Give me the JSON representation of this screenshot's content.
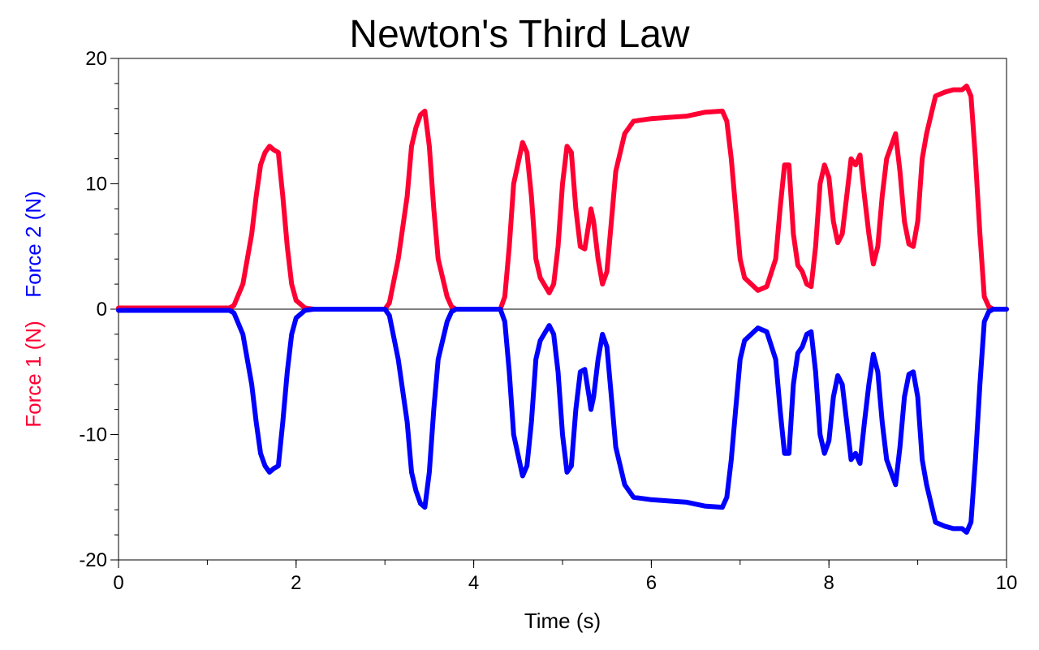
{
  "chart_data": {
    "type": "line",
    "title": "Newton's Third Law",
    "xlabel": "Time (s)",
    "ylabels": [
      {
        "text": "Force 1 (N)",
        "color": "#ff0033"
      },
      {
        "text": "Force 2 (N)",
        "color": "#0000ff"
      }
    ],
    "xlim": [
      0,
      10
    ],
    "ylim": [
      -20,
      20
    ],
    "xticks": [
      0,
      2,
      4,
      6,
      8,
      10
    ],
    "yticks": [
      -20,
      -10,
      0,
      10,
      20
    ],
    "grid": false,
    "x": [
      0,
      1.25,
      1.3,
      1.4,
      1.5,
      1.55,
      1.6,
      1.65,
      1.7,
      1.75,
      1.8,
      1.85,
      1.9,
      1.95,
      2.0,
      2.1,
      2.2,
      3.0,
      3.05,
      3.15,
      3.25,
      3.3,
      3.35,
      3.4,
      3.45,
      3.5,
      3.55,
      3.6,
      3.7,
      3.75,
      3.8,
      4.3,
      4.35,
      4.4,
      4.45,
      4.55,
      4.6,
      4.65,
      4.7,
      4.75,
      4.85,
      4.9,
      4.95,
      5.0,
      5.05,
      5.1,
      5.15,
      5.2,
      5.25,
      5.3,
      5.32,
      5.35,
      5.4,
      5.45,
      5.5,
      5.55,
      5.6,
      5.7,
      5.8,
      6.0,
      6.2,
      6.4,
      6.6,
      6.8,
      6.85,
      6.9,
      6.95,
      7.0,
      7.05,
      7.2,
      7.3,
      7.4,
      7.45,
      7.5,
      7.55,
      7.6,
      7.65,
      7.7,
      7.75,
      7.8,
      7.85,
      7.9,
      7.95,
      8.0,
      8.05,
      8.1,
      8.15,
      8.2,
      8.25,
      8.3,
      8.35,
      8.4,
      8.45,
      8.5,
      8.55,
      8.6,
      8.65,
      8.75,
      8.8,
      8.85,
      8.9,
      8.95,
      9.0,
      9.05,
      9.1,
      9.2,
      9.3,
      9.4,
      9.5,
      9.55,
      9.6,
      9.65,
      9.7,
      9.75,
      9.8,
      9.85,
      10
    ],
    "series": [
      {
        "name": "Force 1 (N)",
        "color": "#ff0033",
        "values": [
          0.1,
          0.1,
          0.3,
          2,
          6,
          9,
          11.5,
          12.5,
          13,
          12.7,
          12.5,
          9,
          5,
          2,
          0.7,
          0.1,
          0,
          0,
          0.5,
          4,
          9,
          13,
          14.5,
          15.5,
          15.8,
          13,
          8,
          4,
          1,
          0.2,
          0,
          0,
          1,
          5,
          10,
          13.3,
          12.5,
          9,
          4,
          2.5,
          1.3,
          2,
          5,
          10,
          13,
          12.5,
          8,
          5,
          4.8,
          7,
          8,
          7,
          4,
          2,
          3,
          7,
          11,
          14,
          15,
          15.2,
          15.3,
          15.4,
          15.7,
          15.8,
          15,
          12,
          8,
          4,
          2.5,
          1.5,
          1.8,
          4,
          8,
          11.5,
          11.5,
          6,
          3.5,
          3,
          2,
          1.8,
          5,
          10,
          11.5,
          10.5,
          7,
          5.3,
          6,
          9,
          12,
          11.5,
          12.3,
          9,
          6,
          3.6,
          5,
          9,
          12,
          14,
          11,
          7,
          5.2,
          5,
          7,
          12,
          14,
          17,
          17.3,
          17.5,
          17.5,
          17.8,
          17,
          12,
          6,
          1,
          0.2,
          0,
          0
        ]
      },
      {
        "name": "Force 2 (N)",
        "color": "#0000ff",
        "values": [
          -0.1,
          -0.1,
          -0.3,
          -2,
          -6,
          -9,
          -11.5,
          -12.5,
          -13,
          -12.7,
          -12.5,
          -9,
          -5,
          -2,
          -0.7,
          -0.1,
          0,
          0,
          -0.5,
          -4,
          -9,
          -13,
          -14.5,
          -15.5,
          -15.8,
          -13,
          -8,
          -4,
          -1,
          -0.2,
          0,
          0,
          -1,
          -5,
          -10,
          -13.3,
          -12.5,
          -9,
          -4,
          -2.5,
          -1.3,
          -2,
          -5,
          -10,
          -13,
          -12.5,
          -8,
          -5,
          -4.8,
          -7,
          -8,
          -7,
          -4,
          -2,
          -3,
          -7,
          -11,
          -14,
          -15,
          -15.2,
          -15.3,
          -15.4,
          -15.7,
          -15.8,
          -15,
          -12,
          -8,
          -4,
          -2.5,
          -1.5,
          -1.8,
          -4,
          -8,
          -11.5,
          -11.5,
          -6,
          -3.5,
          -3,
          -2,
          -1.8,
          -5,
          -10,
          -11.5,
          -10.5,
          -7,
          -5.3,
          -6,
          -9,
          -12,
          -11.5,
          -12.3,
          -9,
          -6,
          -3.6,
          -5,
          -9,
          -12,
          -14,
          -11,
          -7,
          -5.2,
          -5,
          -7,
          -12,
          -14,
          -17,
          -17.3,
          -17.5,
          -17.5,
          -17.8,
          -17,
          -12,
          -6,
          -1,
          -0.2,
          0,
          0
        ]
      }
    ]
  }
}
